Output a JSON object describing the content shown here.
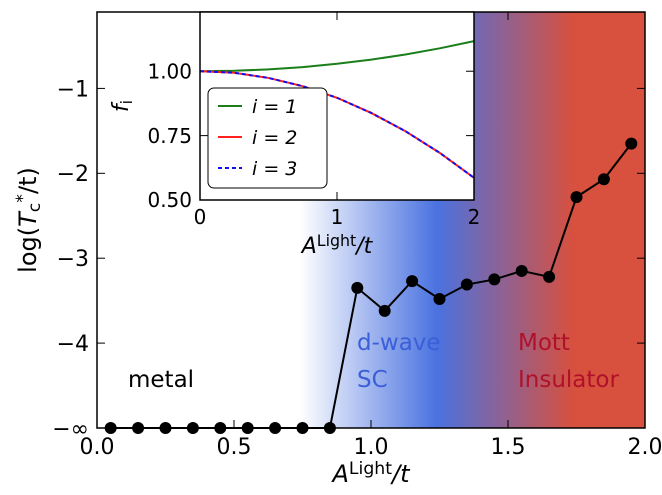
{
  "chart_data": [
    {
      "type": "line",
      "markers": true,
      "color": "#000000",
      "x": [
        0.05,
        0.15,
        0.25,
        0.35,
        0.45,
        0.55,
        0.65,
        0.75,
        0.85,
        0.95,
        1.05,
        1.15,
        1.25,
        1.35,
        1.45,
        1.55,
        1.65,
        1.75,
        1.85,
        1.95
      ],
      "values": [
        -5,
        -5,
        -5,
        -5,
        -5,
        -5,
        -5,
        -5,
        -5,
        -3.35,
        -3.62,
        -3.27,
        -3.48,
        -3.31,
        -3.25,
        -3.15,
        -3.22,
        -2.28,
        -2.07,
        -1.65
      ],
      "xlim": [
        0,
        2
      ],
      "ylim": [
        -5,
        -0.1
      ],
      "xticks": [
        {
          "value": 0,
          "label": "0.0"
        },
        {
          "value": 0.5,
          "label": "0.5"
        },
        {
          "value": 1,
          "label": "1.0"
        },
        {
          "value": 1.5,
          "label": "1.5"
        },
        {
          "value": 2,
          "label": "2.0"
        }
      ],
      "yticks": [
        {
          "value": -5,
          "label": "−∞"
        },
        {
          "value": -4,
          "label": "−4"
        },
        {
          "value": -3,
          "label": "−3"
        },
        {
          "value": -2,
          "label": "−2"
        },
        {
          "value": -1,
          "label": "−1"
        }
      ],
      "xlabel": [
        "A",
        "Light",
        "/t"
      ],
      "ylabel": [
        "log(",
        "T",
        "c",
        "*",
        "/t)"
      ],
      "annotations": [
        "metal",
        "d-wave",
        "SC",
        "Mott",
        "Insulator"
      ]
    },
    {
      "type": "line",
      "markers": false,
      "x": [
        0,
        0.25,
        0.5,
        0.75,
        1,
        1.25,
        1.5,
        1.75,
        2
      ],
      "series": [
        {
          "name": "i = 1",
          "color": "#1a7f1a",
          "linestyle": "solid",
          "values": [
            1.0,
            1.002,
            1.007,
            1.016,
            1.029,
            1.045,
            1.065,
            1.089,
            1.117
          ]
        },
        {
          "name": "i = 2",
          "color": "#ff2020",
          "linestyle": "solid",
          "values": [
            1.0,
            0.994,
            0.974,
            0.942,
            0.897,
            0.838,
            0.767,
            0.683,
            0.586
          ]
        },
        {
          "name": "i = 3",
          "color": "#1010ee",
          "linestyle": "dashed",
          "values": [
            1.0,
            0.994,
            0.974,
            0.942,
            0.897,
            0.838,
            0.767,
            0.683,
            0.586
          ]
        }
      ],
      "xlim": [
        0,
        2
      ],
      "ylim": [
        0.5,
        1.23
      ],
      "xticks": [
        0,
        1,
        2
      ],
      "yticks": [
        {
          "value": 0.5,
          "label": "0.50"
        },
        {
          "value": 0.75,
          "label": "0.75"
        },
        {
          "value": 1,
          "label": "1.00"
        }
      ],
      "xlabel": [
        "A",
        "Light",
        "/t"
      ],
      "ylabel": [
        "f",
        "i"
      ],
      "legend": "lower left"
    }
  ]
}
